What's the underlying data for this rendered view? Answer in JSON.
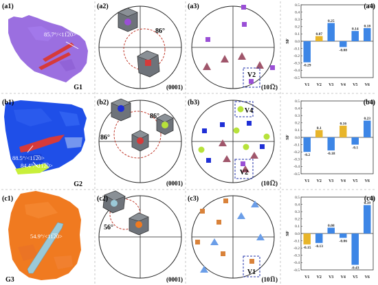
{
  "panels": {
    "a1": "(a1)",
    "a2": "(a2)",
    "a3": "(a3)",
    "a4": "(a4)",
    "b1": "(b1)",
    "b2": "(b2)",
    "b3": "(b3)",
    "b4": "(b4)",
    "c1": "(c1)",
    "c2": "(c2)",
    "c3": "(c3)",
    "c4": "(c4)"
  },
  "grains": {
    "g1": "G1",
    "g2": "G2",
    "g3": "G3",
    "a1_label": "85.7°/<11̅2̅0>",
    "b1_label1": "88.5°/<11̅2̅0>",
    "b1_label2": "84.4°/<11̅2̅0>",
    "c1_label": "54.9°/<11̅2̅0>"
  },
  "poles": {
    "basal_a": "(0001)",
    "basal_b": "(0001)",
    "basal_c": "(0001)",
    "twin_a": "(101̅2)",
    "twin_b": "(101̅2)",
    "twin_c": "(101̅1)"
  },
  "angles": {
    "a2": "86°",
    "b2_1": "86°",
    "b2_2": "86°",
    "c2": "56°"
  },
  "variants": {
    "a3": "V2",
    "b3_1": "V4",
    "b3_2": "V2",
    "c3": "V1"
  },
  "colors": {
    "purple_grain": "#9b6fe0",
    "blue_grain": "#1f4fe8",
    "orange_grain": "#f07a20",
    "twin_red": "#d63a3a",
    "twin_lime": "#c8ef3a",
    "twin_cyan": "#9bc9d8",
    "bar_blue": "#3d86e6",
    "bar_yellow": "#e8b52a",
    "hex_gray": "#6e737a",
    "circle_dash": "#c0392b",
    "marker_purple": "#9a4fd6",
    "marker_mauve": "#a0566b",
    "marker_blue": "#1f2fd6",
    "marker_lime": "#b7e23a",
    "marker_orange": "#d9823a",
    "marker_lightblue": "#6b9ee8"
  },
  "chart_data": [
    {
      "type": "bar",
      "panel": "a4",
      "categories": [
        "V1",
        "V2",
        "V3",
        "V4",
        "V5",
        "V6"
      ],
      "values": [
        -0.29,
        0.07,
        0.25,
        -0.08,
        0.14,
        0.18
      ],
      "value_labels": [
        "-0.29",
        "0.07",
        "0.25",
        "-0.08",
        "0.14",
        "0.18"
      ],
      "ylabel": "SF",
      "ylim": [
        -0.5,
        0.5
      ],
      "yticks": [
        "-0.5",
        "-0.4",
        "-0.3",
        "-0.2",
        "-0.1",
        "0.0",
        "0.1",
        "0.2",
        "0.3",
        "0.4",
        "0.5"
      ],
      "highlight": "V2"
    },
    {
      "type": "bar",
      "panel": "b4",
      "categories": [
        "V1",
        "V2",
        "V3",
        "V4",
        "V5",
        "V6"
      ],
      "values": [
        -0.2,
        0.1,
        -0.18,
        0.16,
        -0.1,
        0.23
      ],
      "value_labels": [
        "-0.2",
        "0.1",
        "-0.18",
        "0.16",
        "-0.1",
        "0.23"
      ],
      "ylabel": "SF",
      "ylim": [
        -0.5,
        0.5
      ],
      "yticks": [
        "-0.5",
        "-0.4",
        "-0.3",
        "-0.2",
        "-0.1",
        "0.0",
        "0.1",
        "0.2",
        "0.3",
        "0.4",
        "0.5"
      ],
      "highlight": [
        "V2",
        "V4"
      ]
    },
    {
      "type": "bar",
      "panel": "c4",
      "categories": [
        "V1",
        "V2",
        "V3",
        "V4",
        "V5",
        "V6"
      ],
      "values": [
        -0.15,
        -0.13,
        0.08,
        -0.06,
        -0.43,
        0.39
      ],
      "value_labels": [
        "-0.15",
        "-0.13",
        "0.08",
        "-0.06",
        "-0.43",
        "0.39"
      ],
      "ylabel": "SF",
      "ylim": [
        -0.5,
        0.5
      ],
      "yticks": [
        "-0.5",
        "-0.4",
        "-0.3",
        "-0.2",
        "-0.1",
        "0.0",
        "0.1",
        "0.2",
        "0.3",
        "0.4",
        "0.5"
      ],
      "highlight": "V1"
    }
  ]
}
